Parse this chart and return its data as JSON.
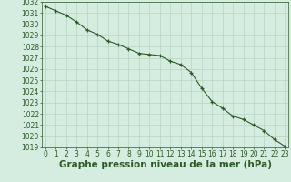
{
  "x": [
    0,
    1,
    2,
    3,
    4,
    5,
    6,
    7,
    8,
    9,
    10,
    11,
    12,
    13,
    14,
    15,
    16,
    17,
    18,
    19,
    20,
    21,
    22,
    23
  ],
  "y": [
    1031.6,
    1031.2,
    1030.8,
    1030.2,
    1029.5,
    1029.1,
    1028.5,
    1028.2,
    1027.8,
    1027.4,
    1027.3,
    1027.2,
    1026.7,
    1026.4,
    1025.7,
    1024.3,
    1023.1,
    1022.5,
    1021.8,
    1021.5,
    1021.0,
    1020.5,
    1019.7,
    1019.1
  ],
  "ylim": [
    1019,
    1032
  ],
  "yticks": [
    1019,
    1020,
    1021,
    1022,
    1023,
    1024,
    1025,
    1026,
    1027,
    1028,
    1029,
    1030,
    1031,
    1032
  ],
  "xticks": [
    0,
    1,
    2,
    3,
    4,
    5,
    6,
    7,
    8,
    9,
    10,
    11,
    12,
    13,
    14,
    15,
    16,
    17,
    18,
    19,
    20,
    21,
    22,
    23
  ],
  "xlabel": "Graphe pression niveau de la mer (hPa)",
  "line_color": "#2d5a27",
  "marker": "+",
  "marker_size": 3,
  "background_color": "#d4ede0",
  "grid_color": "#b8d4c4",
  "tick_label_fontsize": 5.5,
  "xlabel_fontsize": 7.5
}
